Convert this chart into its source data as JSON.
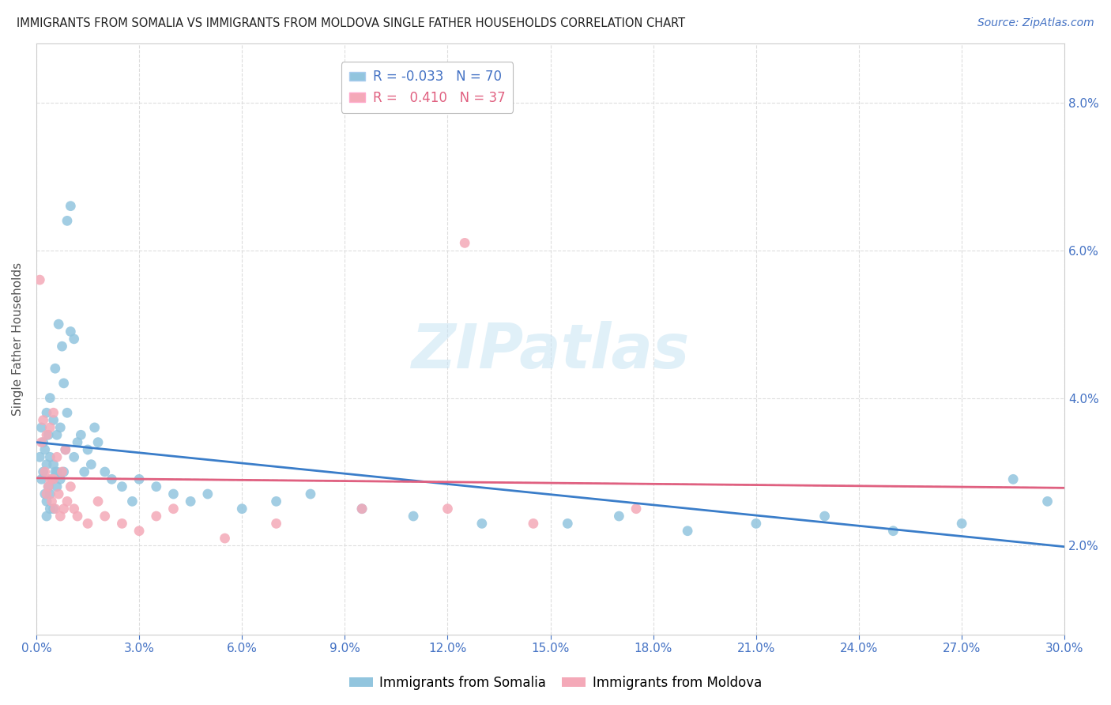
{
  "title": "IMMIGRANTS FROM SOMALIA VS IMMIGRANTS FROM MOLDOVA SINGLE FATHER HOUSEHOLDS CORRELATION CHART",
  "source": "Source: ZipAtlas.com",
  "ylabel": "Single Father Households",
  "xlim": [
    0.0,
    30.0
  ],
  "ylim": [
    0.8,
    8.8
  ],
  "yticks": [
    2.0,
    4.0,
    6.0,
    8.0
  ],
  "xticks": [
    0.0,
    3.0,
    6.0,
    9.0,
    12.0,
    15.0,
    18.0,
    21.0,
    24.0,
    27.0,
    30.0
  ],
  "somalia_R": -0.033,
  "somalia_N": 70,
  "moldova_R": 0.41,
  "moldova_N": 37,
  "somalia_color": "#92C5DE",
  "moldova_color": "#F4A9B8",
  "somalia_line_color": "#3A7DC9",
  "moldova_line_color": "#E06080",
  "dashed_line_color": "#CCCCCC",
  "somalia_points_x": [
    0.1,
    0.15,
    0.15,
    0.2,
    0.2,
    0.25,
    0.25,
    0.3,
    0.3,
    0.3,
    0.35,
    0.35,
    0.4,
    0.4,
    0.4,
    0.45,
    0.5,
    0.5,
    0.5,
    0.55,
    0.55,
    0.6,
    0.6,
    0.65,
    0.7,
    0.7,
    0.75,
    0.8,
    0.8,
    0.85,
    0.9,
    0.9,
    1.0,
    1.0,
    1.1,
    1.1,
    1.2,
    1.3,
    1.4,
    1.5,
    1.6,
    1.7,
    1.8,
    2.0,
    2.2,
    2.5,
    2.8,
    3.0,
    3.5,
    4.0,
    4.5,
    5.0,
    6.0,
    7.0,
    8.0,
    9.5,
    11.0,
    13.0,
    15.5,
    17.0,
    19.0,
    21.0,
    23.0,
    25.0,
    27.0,
    28.5,
    29.5,
    0.6,
    0.3,
    0.4
  ],
  "somalia_points_y": [
    3.2,
    2.9,
    3.6,
    3.0,
    3.4,
    2.7,
    3.3,
    2.6,
    3.1,
    3.8,
    2.8,
    3.5,
    2.7,
    3.2,
    4.0,
    2.9,
    2.5,
    3.1,
    3.7,
    3.0,
    4.4,
    2.8,
    3.5,
    5.0,
    2.9,
    3.6,
    4.7,
    3.0,
    4.2,
    3.3,
    3.8,
    6.4,
    6.6,
    4.9,
    4.8,
    3.2,
    3.4,
    3.5,
    3.0,
    3.3,
    3.1,
    3.6,
    3.4,
    3.0,
    2.9,
    2.8,
    2.6,
    2.9,
    2.8,
    2.7,
    2.6,
    2.7,
    2.5,
    2.6,
    2.7,
    2.5,
    2.4,
    2.3,
    2.3,
    2.4,
    2.2,
    2.3,
    2.4,
    2.2,
    2.3,
    2.9,
    2.6,
    3.0,
    2.4,
    2.5
  ],
  "moldova_points_x": [
    0.1,
    0.15,
    0.2,
    0.25,
    0.3,
    0.3,
    0.35,
    0.4,
    0.4,
    0.45,
    0.5,
    0.5,
    0.55,
    0.6,
    0.65,
    0.7,
    0.75,
    0.8,
    0.85,
    0.9,
    1.0,
    1.1,
    1.2,
    1.5,
    1.8,
    2.0,
    2.5,
    3.0,
    3.5,
    4.0,
    5.5,
    7.0,
    9.5,
    12.0,
    14.5,
    17.5,
    12.5
  ],
  "moldova_points_y": [
    5.6,
    3.4,
    3.7,
    3.0,
    2.7,
    3.5,
    2.8,
    2.9,
    3.6,
    2.6,
    2.9,
    3.8,
    2.5,
    3.2,
    2.7,
    2.4,
    3.0,
    2.5,
    3.3,
    2.6,
    2.8,
    2.5,
    2.4,
    2.3,
    2.6,
    2.4,
    2.3,
    2.2,
    2.4,
    2.5,
    2.1,
    2.3,
    2.5,
    2.5,
    2.3,
    2.5,
    6.1
  ]
}
